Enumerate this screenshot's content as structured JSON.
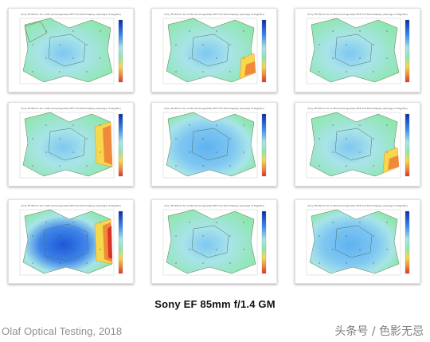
{
  "caption": "Sony EF 85mm f/1.4 GM",
  "credit": "Olaf Optical Testing, 2018",
  "watermark": "头条号 / 色影无忌",
  "plot_title": "Sony FE 85mm f/1.4 GM (Unrecognized) MTF Full Field Display (Average of Sag/Tan)",
  "plots": [
    {
      "row": 1,
      "col": 1,
      "severity": 1,
      "corner_warm": [
        "bottom-left"
      ]
    },
    {
      "row": 1,
      "col": 2,
      "severity": 1,
      "corner_warm": [
        "bottom-right"
      ]
    },
    {
      "row": 1,
      "col": 3,
      "severity": 1,
      "corner_warm": []
    },
    {
      "row": 2,
      "col": 1,
      "severity": 1,
      "corner_warm": [
        "right"
      ]
    },
    {
      "row": 2,
      "col": 2,
      "severity": 2,
      "corner_warm": []
    },
    {
      "row": 2,
      "col": 3,
      "severity": 1,
      "corner_warm": [
        "bottom-right"
      ]
    },
    {
      "row": 3,
      "col": 1,
      "severity": 3,
      "corner_warm": [
        "right"
      ]
    },
    {
      "row": 3,
      "col": 2,
      "severity": 1,
      "corner_warm": []
    },
    {
      "row": 3,
      "col": 3,
      "severity": 2,
      "corner_warm": []
    }
  ],
  "colors": {
    "field_green": "#8fe6b0",
    "field_cyan": "#a8e4e8",
    "center_blue": "#7fc7f2",
    "deep_blue": "#1f57d6",
    "warm_yellow": "#f5d84b",
    "warm_orange": "#f08a3a",
    "warm_red": "#d9342b",
    "border_olive": "#5a7a4a"
  }
}
